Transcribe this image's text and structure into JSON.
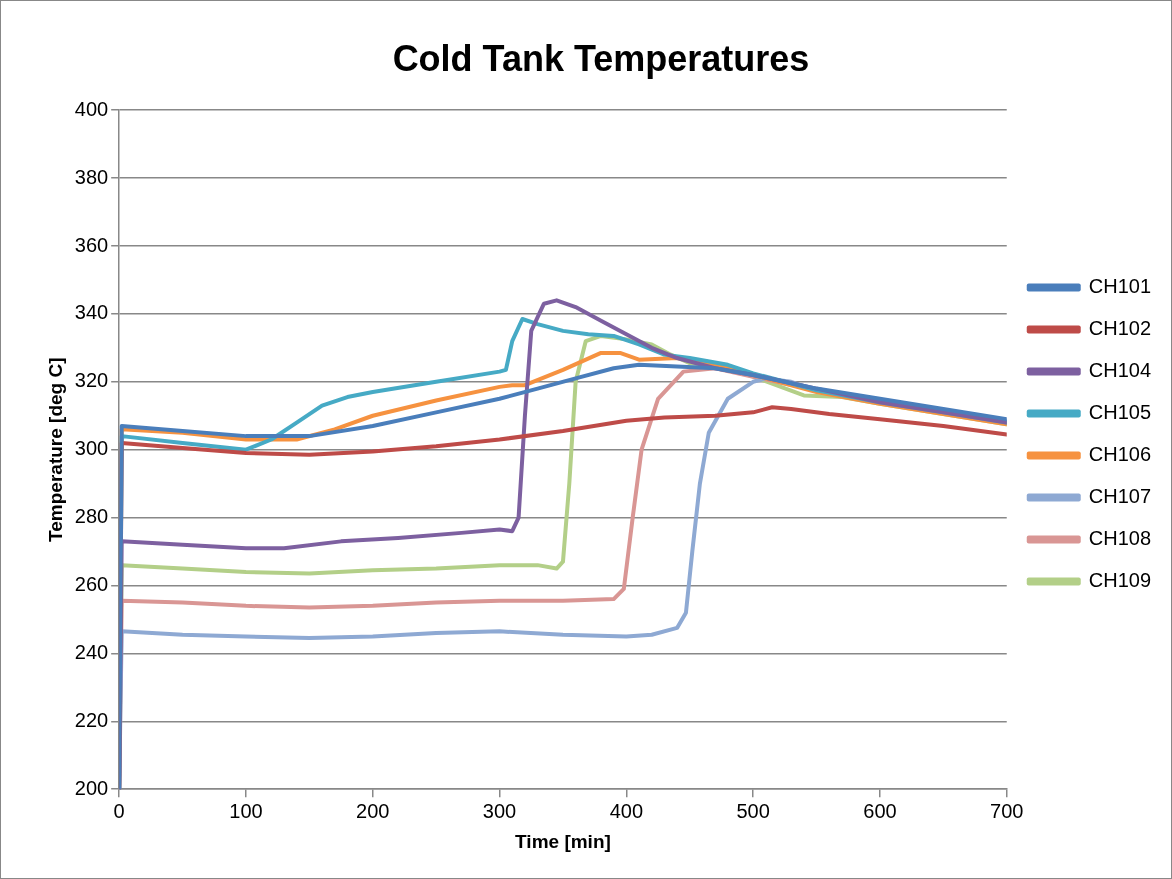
{
  "chart_data": {
    "type": "line",
    "title": "Cold Tank Temperatures",
    "xlabel": "Time [min]",
    "ylabel": "Temperature [deg C]",
    "xlim": [
      0,
      700
    ],
    "xticks": [
      0,
      100,
      200,
      300,
      400,
      500,
      600,
      700
    ],
    "ylim": [
      200,
      400
    ],
    "yticks": [
      200,
      220,
      240,
      260,
      280,
      300,
      320,
      340,
      360,
      380,
      400
    ],
    "grid": "y",
    "legend": "right",
    "marker": "none",
    "line_style": "solid",
    "series": [
      {
        "name": "CH101",
        "color": "#4a7ebb",
        "x": [
          0,
          2,
          50,
          100,
          150,
          200,
          250,
          300,
          330,
          360,
          390,
          410,
          440,
          470,
          500,
          550,
          600,
          650,
          700
        ],
        "values": [
          200,
          307,
          305.5,
          304,
          304,
          307,
          311,
          315,
          318,
          321,
          324,
          325,
          324.5,
          324,
          322,
          318,
          315,
          312,
          309
        ]
      },
      {
        "name": "CH102",
        "color": "#be4b48",
        "x": [
          0,
          2,
          50,
          100,
          150,
          200,
          250,
          300,
          350,
          400,
          430,
          470,
          500,
          515,
          530,
          560,
          600,
          650,
          700
        ],
        "values": [
          200,
          302,
          300.5,
          299,
          298.5,
          299.5,
          301,
          303,
          305.5,
          308.5,
          309.5,
          310,
          311,
          312.5,
          312,
          310.5,
          309,
          307,
          304.5
        ]
      },
      {
        "name": "CH104",
        "color": "#7d60a0",
        "x": [
          0,
          2,
          50,
          100,
          130,
          175,
          220,
          270,
          300,
          310,
          315,
          320,
          325,
          335,
          345,
          360,
          380,
          400,
          420,
          440,
          470,
          500,
          550,
          600,
          650,
          700
        ],
        "values": [
          200,
          273,
          272,
          271,
          271,
          273,
          274,
          275.5,
          276.5,
          276,
          280,
          310,
          335,
          343,
          344,
          342,
          338,
          334,
          330,
          327,
          324,
          322,
          318,
          314,
          311,
          308
        ]
      },
      {
        "name": "CH105",
        "color": "#46aac5",
        "x": [
          0,
          2,
          50,
          100,
          120,
          140,
          160,
          180,
          200,
          250,
          300,
          305,
          310,
          318,
          330,
          350,
          370,
          390,
          410,
          430,
          450,
          480,
          500,
          550,
          600,
          650,
          700
        ],
        "values": [
          200,
          304,
          302,
          300,
          303,
          308,
          313,
          315.5,
          317,
          320,
          323,
          323.5,
          332,
          338.5,
          337,
          335,
          334,
          333.5,
          331,
          328,
          327,
          325,
          322.5,
          317.5,
          314,
          311,
          308
        ]
      },
      {
        "name": "CH106",
        "color": "#f69240",
        "x": [
          0,
          2,
          50,
          100,
          140,
          170,
          200,
          250,
          300,
          310,
          320,
          350,
          380,
          395,
          410,
          440,
          470,
          500,
          550,
          600,
          650,
          700
        ],
        "values": [
          266,
          306,
          305,
          303,
          303,
          306,
          310,
          314.5,
          318.5,
          319,
          319,
          323.5,
          328.5,
          328.5,
          326.5,
          327,
          325,
          322,
          317,
          313.5,
          310.5,
          307.5
        ]
      },
      {
        "name": "CH107",
        "color": "#8ea9d3",
        "x": [
          0,
          2,
          50,
          100,
          150,
          200,
          250,
          300,
          350,
          400,
          420,
          440,
          447,
          452,
          458,
          465,
          480,
          500,
          510,
          530,
          550,
          600,
          650,
          700
        ],
        "values": [
          200,
          246.5,
          245.5,
          245,
          244.5,
          245,
          246,
          246.5,
          245.5,
          245,
          245.5,
          247.5,
          252,
          270,
          290,
          305,
          315,
          320,
          321,
          320,
          317.5,
          314.5,
          311.5,
          308.5
        ]
      },
      {
        "name": "CH108",
        "color": "#d99694",
        "x": [
          0,
          2,
          50,
          100,
          150,
          200,
          250,
          300,
          350,
          390,
          398,
          405,
          412,
          425,
          445,
          470,
          500,
          550,
          600,
          650,
          700
        ],
        "values": [
          200,
          255.5,
          255,
          254,
          253.5,
          254,
          255,
          255.5,
          255.5,
          256,
          259,
          280,
          300,
          315,
          323,
          324,
          321.5,
          317.5,
          314,
          311,
          308
        ]
      },
      {
        "name": "CH109",
        "color": "#b3cf88",
        "x": [
          0,
          2,
          50,
          100,
          150,
          200,
          250,
          300,
          330,
          345,
          350,
          355,
          360,
          368,
          380,
          400,
          420,
          435,
          450,
          480,
          500,
          540,
          570,
          600,
          650,
          700
        ],
        "values": [
          200,
          266,
          265,
          264,
          263.5,
          264.5,
          265,
          266,
          266,
          265,
          267,
          290,
          320,
          332,
          333.5,
          332.5,
          331,
          328,
          325.5,
          324,
          321.5,
          316,
          315.5,
          313.5,
          310.5,
          307.5
        ]
      }
    ]
  }
}
